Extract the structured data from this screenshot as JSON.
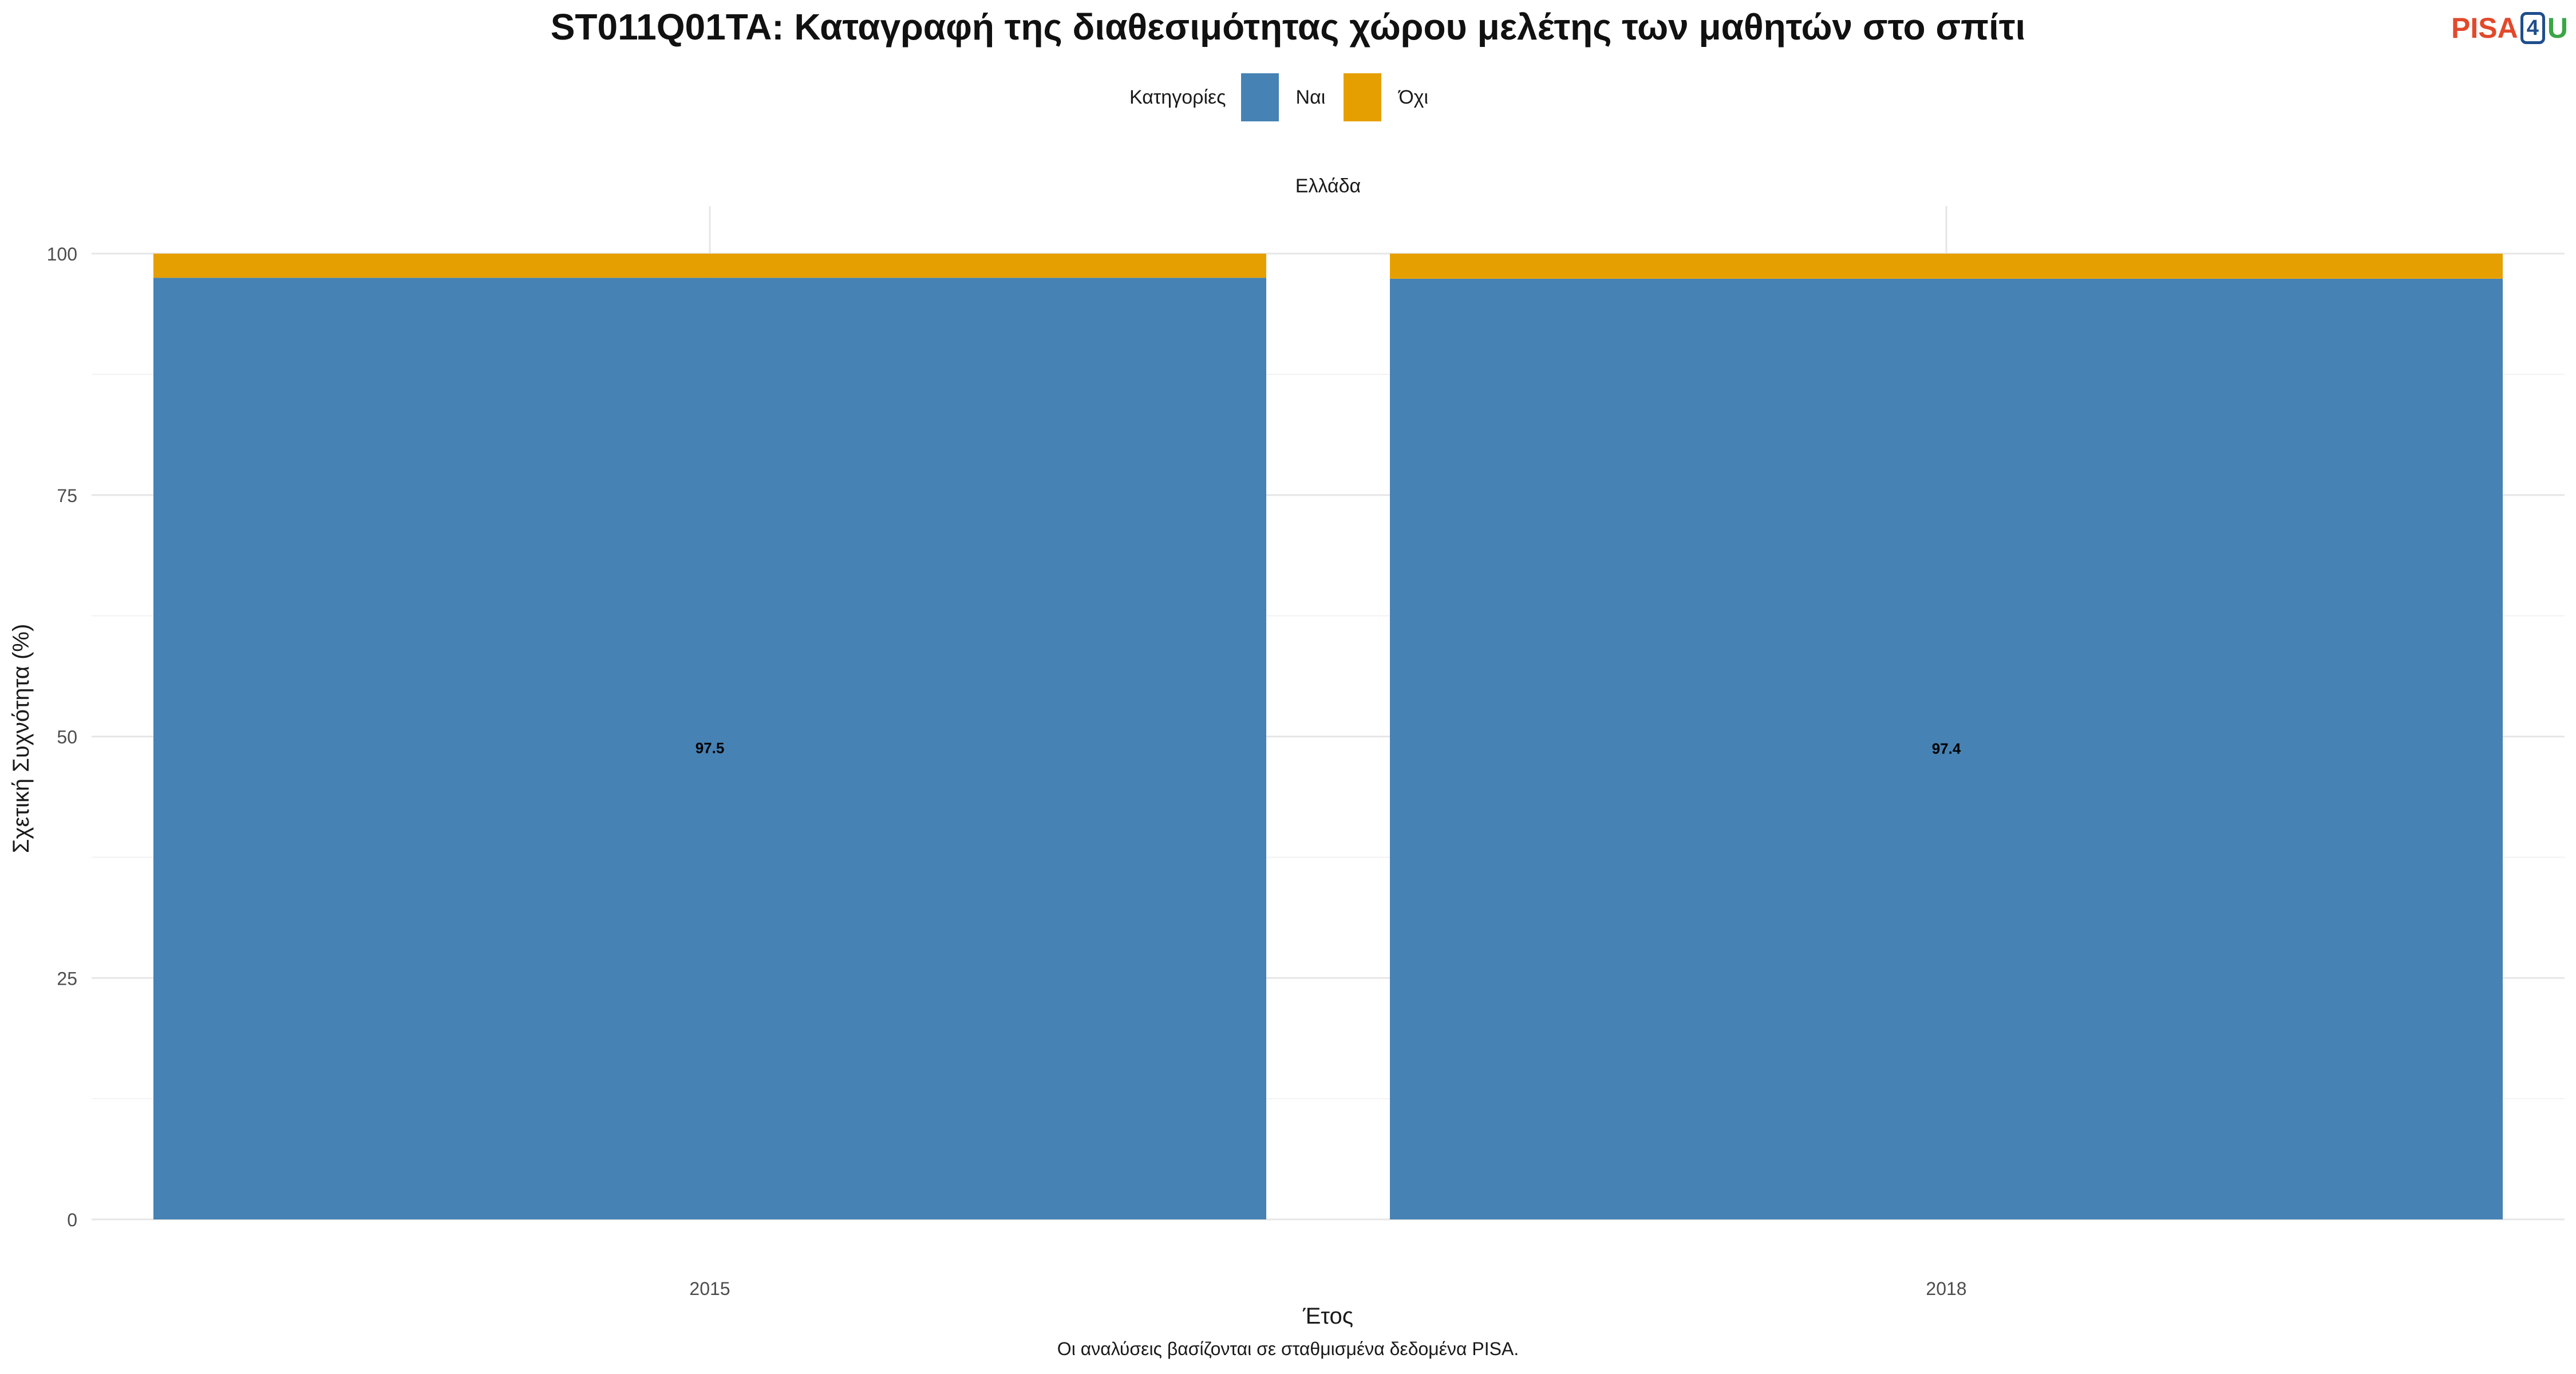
{
  "logo": {
    "part1": "PISA",
    "part2": "4",
    "part3": "U"
  },
  "chart_data": {
    "type": "bar",
    "stacked": true,
    "title": "ST011Q01TA: Καταγραφή της διαθεσιμότητας χώρου μελέτης των μαθητών στο σπίτι",
    "facet": "Ελλάδα",
    "legend_title": "Κατηγορίες",
    "legend_position": "top",
    "categories": [
      "2015",
      "2018"
    ],
    "series": [
      {
        "name": "Ναι",
        "color": "#4682b4",
        "values": [
          97.5,
          97.4
        ],
        "labels": [
          "97.5",
          "97.4"
        ]
      },
      {
        "name": "Όχι",
        "color": "#e69f00",
        "values": [
          2.5,
          2.6
        ]
      }
    ],
    "xlabel": "Έτος",
    "ylabel": "Σχετική Συχνότητα (%)",
    "ylim": [
      0,
      100
    ],
    "yticks": [
      "0",
      "25",
      "50",
      "75",
      "100"
    ],
    "grid": true,
    "caption": "Οι αναλύσεις βασίζονται σε σταθμισμένα δεδομένα PISA."
  }
}
